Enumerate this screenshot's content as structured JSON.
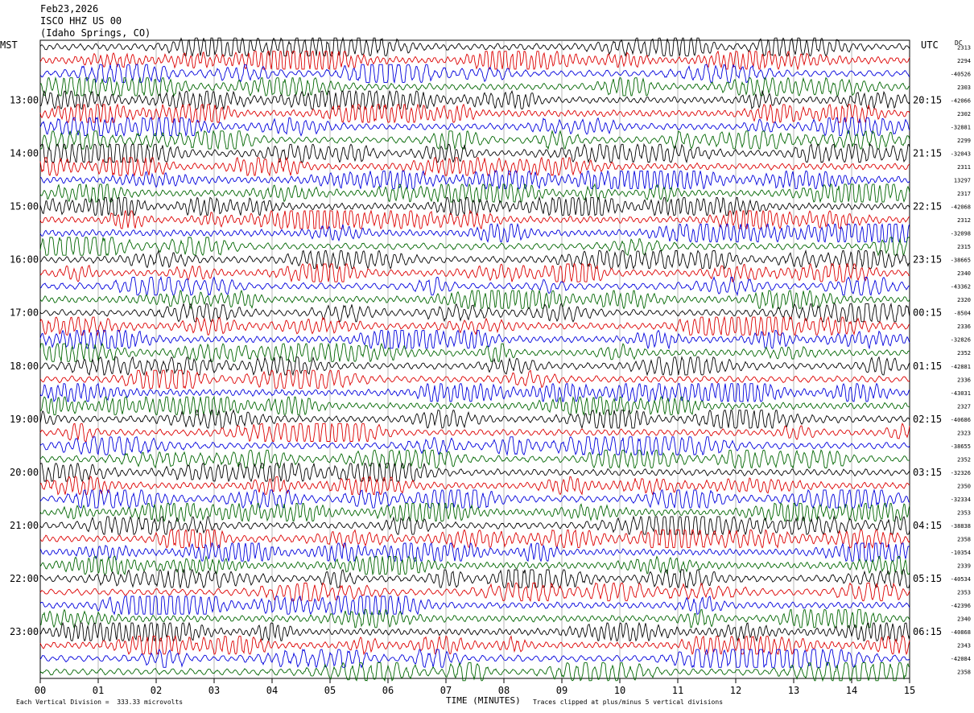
{
  "header": {
    "date": "Feb23,2026",
    "station": "ISCO HHZ US 00",
    "location": "(Idaho Springs, CO)"
  },
  "footer": {
    "scale_note": "Each Vertical Division =  333.33 microvolts",
    "clip_note": "Traces clipped at plus/minus 5 vertical divisions"
  },
  "colors": {
    "trace_cycle": [
      "#000000",
      "#dd0000",
      "#0000dd",
      "#006600"
    ],
    "grid": "#888888"
  },
  "chart_data": {
    "type": "line",
    "subtype": "helicorder",
    "left_tz": "MST",
    "right_tz": "UTC",
    "right_top_label": "DC",
    "xlabel": "TIME (MINUTES)",
    "x_ticks": [
      "00",
      "01",
      "02",
      "03",
      "04",
      "05",
      "06",
      "07",
      "08",
      "09",
      "10",
      "11",
      "12",
      "13",
      "14",
      "15"
    ],
    "x_range": [
      0,
      15
    ],
    "left_time_labels": [
      "13:00",
      "14:00",
      "15:00",
      "16:00",
      "17:00",
      "18:00",
      "19:00",
      "20:00",
      "21:00",
      "22:00",
      "23:00"
    ],
    "right_time_labels": [
      "20:15",
      "21:15",
      "22:15",
      "23:15",
      "00:15",
      "01:15",
      "02:15",
      "03:15",
      "04:15",
      "05:15",
      "06:15"
    ],
    "row_count": 48,
    "rows_per_hour": 4,
    "first_labeled_row": 4,
    "dc_offsets": [
      "2313",
      "2294",
      "-40526",
      "2303",
      "-42066",
      "2302",
      "-32881",
      "2299",
      "-32043",
      "2311",
      "13297",
      "2317",
      "-42068",
      "2312",
      "-32098",
      "2315",
      "-38665",
      "2340",
      "-43362",
      "2320",
      "-8504",
      "2336",
      "-32826",
      "2352",
      "-42881",
      "2336",
      "-43031",
      "2327",
      "-40686",
      "2323",
      "-38655",
      "2352",
      "-32326",
      "2350",
      "-32334",
      "2353",
      "-38838",
      "2358",
      "-10354",
      "2339",
      "-40534",
      "2353",
      "-42396",
      "2340",
      "-40868",
      "2343",
      "-42084",
      "2358"
    ],
    "amplitude_units": "vertical divisions",
    "clip_level": 5
  }
}
